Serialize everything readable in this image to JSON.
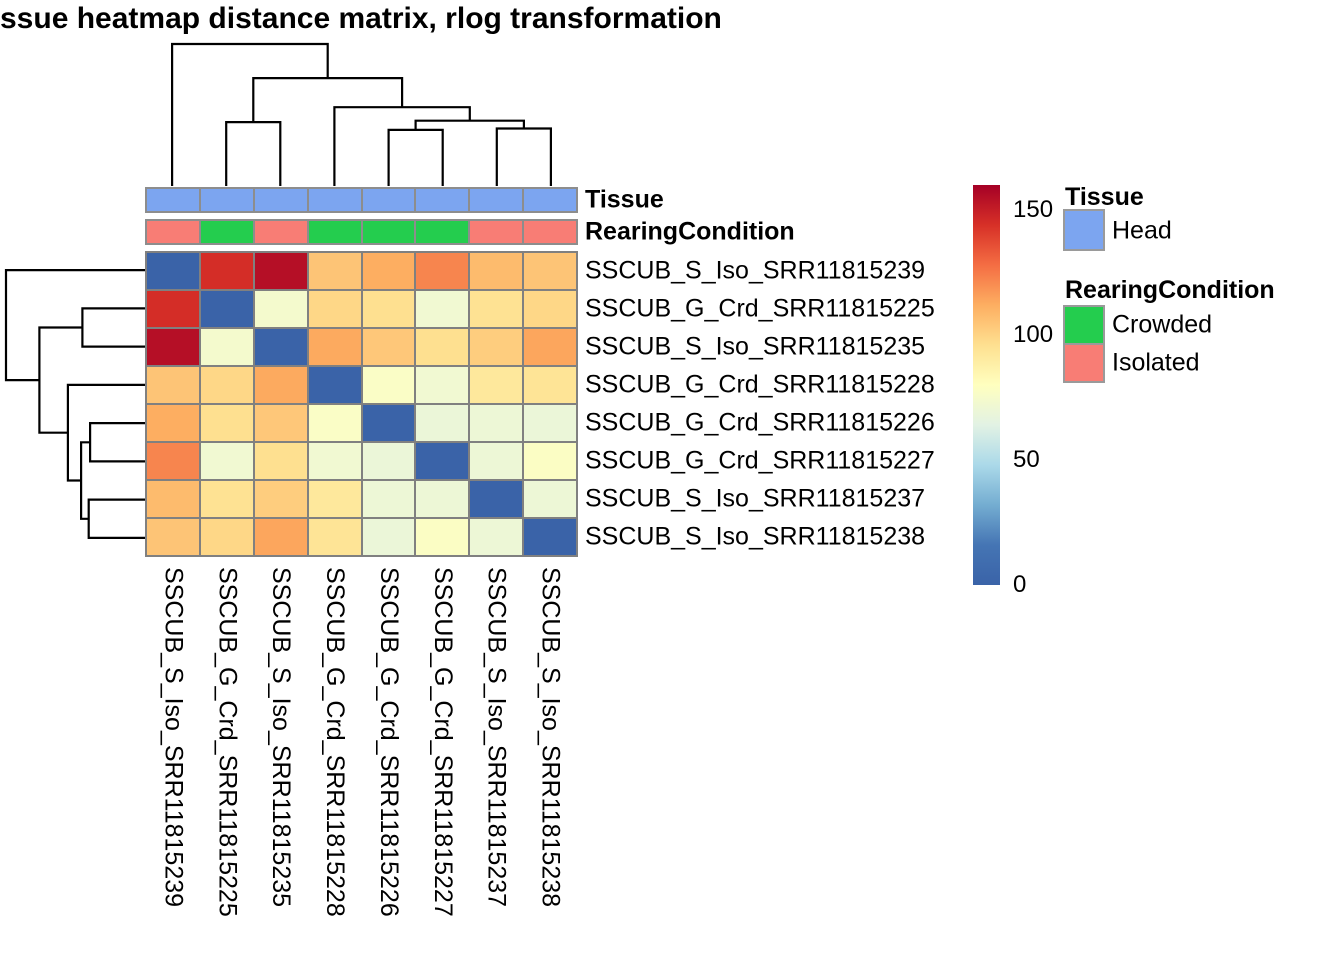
{
  "title": "ssue heatmap distance matrix, rlog transformation",
  "chart_data": {
    "type": "heatmap",
    "title": "ssue heatmap distance matrix, rlog transformation",
    "rows": [
      "SSCUB_S_Iso_SRR11815239",
      "SSCUB_G_Crd_SRR11815225",
      "SSCUB_S_Iso_SRR11815235",
      "SSCUB_G_Crd_SRR11815228",
      "SSCUB_G_Crd_SRR11815226",
      "SSCUB_G_Crd_SRR11815227",
      "SSCUB_S_Iso_SRR11815237",
      "SSCUB_S_Iso_SRR11815238"
    ],
    "cols": [
      "SSCUB_S_Iso_SRR11815239",
      "SSCUB_G_Crd_SRR11815225",
      "SSCUB_S_Iso_SRR11815235",
      "SSCUB_G_Crd_SRR11815228",
      "SSCUB_G_Crd_SRR11815226",
      "SSCUB_G_Crd_SRR11815227",
      "SSCUB_S_Iso_SRR11815237",
      "SSCUB_S_Iso_SRR11815238"
    ],
    "matrix": [
      [
        0,
        145,
        155,
        105,
        112,
        122,
        108,
        105
      ],
      [
        145,
        0,
        74,
        99,
        96,
        72,
        95,
        99
      ],
      [
        155,
        74,
        0,
        113,
        104,
        96,
        102,
        114
      ],
      [
        105,
        99,
        113,
        0,
        77,
        72,
        92,
        94
      ],
      [
        112,
        96,
        104,
        77,
        0,
        69,
        70,
        69
      ],
      [
        122,
        72,
        96,
        72,
        69,
        0,
        70,
        78
      ],
      [
        108,
        95,
        102,
        92,
        70,
        70,
        0,
        70
      ],
      [
        105,
        99,
        114,
        94,
        69,
        78,
        70,
        0
      ]
    ],
    "colormap": {
      "name": "RdYlBu reversed",
      "domain": [
        0,
        160
      ],
      "anchors": [
        "#3A63A8",
        "#4575B4",
        "#74ADD1",
        "#ABD9E9",
        "#E2F2E4",
        "#FFFFBF",
        "#FEE090",
        "#FDAE61",
        "#F46D43",
        "#D73027",
        "#A50026"
      ]
    },
    "colorbar_ticks": [
      0,
      50,
      100,
      150
    ],
    "grid_color": "#808080",
    "annotations": {
      "tissue": {
        "label": "Tissue",
        "values": [
          "Head",
          "Head",
          "Head",
          "Head",
          "Head",
          "Head",
          "Head",
          "Head"
        ],
        "colors": {
          "Head": "#7CA5F0"
        }
      },
      "rearing": {
        "label": "RearingCondition",
        "values": [
          "Isolated",
          "Crowded",
          "Isolated",
          "Crowded",
          "Crowded",
          "Crowded",
          "Isolated",
          "Isolated"
        ],
        "colors": {
          "Crowded": "#24CD4E",
          "Isolated": "#F87D75"
        }
      }
    },
    "dendrogram": {
      "leaves": 8,
      "nodes": [
        {
          "id": "A",
          "a": "L1",
          "b": "L2",
          "h": 0.45
        },
        {
          "id": "B",
          "a": "L4",
          "b": "L5",
          "h": 0.395
        },
        {
          "id": "C",
          "a": "L6",
          "b": "L7",
          "h": 0.405
        },
        {
          "id": "D",
          "a": "B",
          "b": "C",
          "h": 0.46
        },
        {
          "id": "E",
          "a": "L3",
          "b": "D",
          "h": 0.555
        },
        {
          "id": "F",
          "a": "A",
          "b": "E",
          "h": 0.76
        },
        {
          "id": "G",
          "a": "L0",
          "b": "F",
          "h": 1.0
        }
      ]
    },
    "legend": {
      "tissue_header": "Tissue",
      "tissue_items": [
        {
          "label": "Head",
          "color": "#7CA5F0"
        }
      ],
      "rearing_header": "RearingCondition",
      "rearing_items": [
        {
          "label": "Crowded",
          "color": "#24CD4E"
        },
        {
          "label": "Isolated",
          "color": "#F87D75"
        }
      ]
    }
  }
}
